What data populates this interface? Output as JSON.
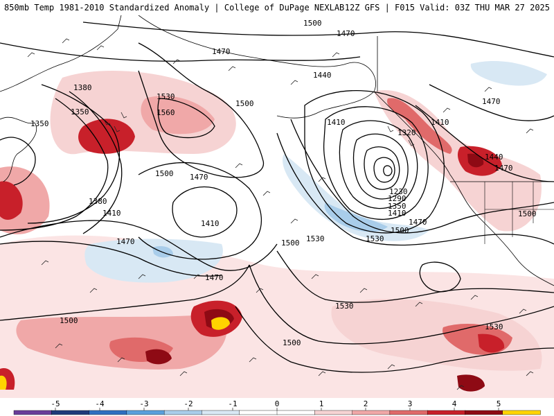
{
  "header": {
    "title_left": "850mb Temp 1981-2010 Standardized Anomaly | College of DuPage NEXLAB",
    "title_right": "12Z GFS | F015 Valid: 03Z THU MAR 27 2025"
  },
  "contour_labels": [
    {
      "id": "c1500-top",
      "text": "1500"
    },
    {
      "id": "c1470-top",
      "text": "1470"
    },
    {
      "id": "c1470-alaska",
      "text": "1470"
    },
    {
      "id": "c1440-gulf",
      "text": "1440"
    },
    {
      "id": "c1380-nw",
      "text": "1380"
    },
    {
      "id": "c1350-nw",
      "text": "1350"
    },
    {
      "id": "c1350-w",
      "text": "1350"
    },
    {
      "id": "c1530-ridge",
      "text": "1530"
    },
    {
      "id": "c1560-ridge",
      "text": "1560"
    },
    {
      "id": "c1500-ridge",
      "text": "1500"
    },
    {
      "id": "c1410-gulf",
      "text": "1410"
    },
    {
      "id": "c1320-low",
      "text": "1320"
    },
    {
      "id": "c1410-coast",
      "text": "1410"
    },
    {
      "id": "c1470-ne",
      "text": "1470"
    },
    {
      "id": "c1500-mid",
      "text": "1500"
    },
    {
      "id": "c1470-mid",
      "text": "1470"
    },
    {
      "id": "c1440-coast",
      "text": "1440"
    },
    {
      "id": "c1470-coast",
      "text": "1470"
    },
    {
      "id": "c1380-w",
      "text": "1380"
    },
    {
      "id": "c1410-w",
      "text": "1410"
    },
    {
      "id": "c1410-low2",
      "text": "1410"
    },
    {
      "id": "c1230-low",
      "text": "1230"
    },
    {
      "id": "c1290-low",
      "text": "1290"
    },
    {
      "id": "c1350-low",
      "text": "1350"
    },
    {
      "id": "c1410-low",
      "text": "1410"
    },
    {
      "id": "c1470-low",
      "text": "1470"
    },
    {
      "id": "c1500-low",
      "text": "1500"
    },
    {
      "id": "c1500-east",
      "text": "1500"
    },
    {
      "id": "c1530-low",
      "text": "1530"
    },
    {
      "id": "c1470-sw",
      "text": "1470"
    },
    {
      "id": "c1500-center",
      "text": "1500"
    },
    {
      "id": "c1530-center",
      "text": "1530"
    },
    {
      "id": "c1470-center",
      "text": "1470"
    },
    {
      "id": "c1530-south",
      "text": "1530"
    },
    {
      "id": "c1530-se",
      "text": "1530"
    },
    {
      "id": "c1500-sw",
      "text": "1500"
    },
    {
      "id": "c1500-south",
      "text": "1500"
    }
  ],
  "legend": {
    "ticks": [
      "-5",
      "-4",
      "-3",
      "-2",
      "-1",
      "0",
      "1",
      "2",
      "3",
      "4",
      "5"
    ],
    "colors": [
      "#6a3d9a",
      "#1f3a7a",
      "#2f6fc0",
      "#5aa0dc",
      "#a9cdea",
      "#d8e8f4",
      "#ffffff",
      "#ffffff",
      "#f6d3d3",
      "#f0a8a8",
      "#e06a6a",
      "#c8202a",
      "#8e0a14",
      "#ffd400"
    ]
  }
}
